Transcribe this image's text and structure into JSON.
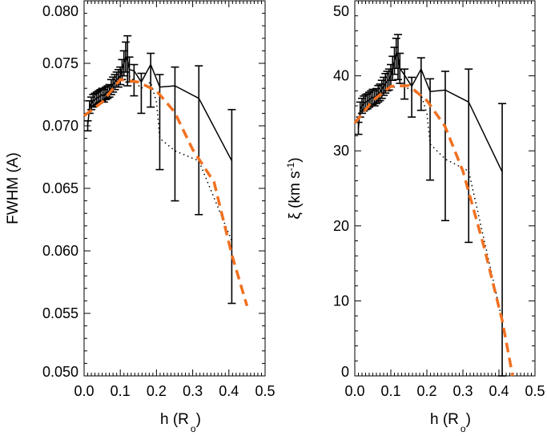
{
  "chart_data": [
    {
      "type": "line",
      "panel": "left",
      "xlabel": "h (R",
      "xlabel_sub": "o",
      "xlabel_close": ")",
      "ylabel": "FWHM (A)",
      "xlim": [
        0.0,
        0.5
      ],
      "ylim": [
        0.05,
        0.08
      ],
      "xticks": [
        "0.0",
        "0.1",
        "0.2",
        "0.3",
        "0.4",
        "0.5"
      ],
      "yticks": [
        "0.050",
        "0.055",
        "0.060",
        "0.065",
        "0.070",
        "0.075",
        "0.080"
      ],
      "cluster": {
        "x": [
          0.01,
          0.015,
          0.02,
          0.025,
          0.03,
          0.035,
          0.04,
          0.045,
          0.05,
          0.055,
          0.06,
          0.065,
          0.07,
          0.075,
          0.08,
          0.085,
          0.09,
          0.095,
          0.1,
          0.105,
          0.11,
          0.115,
          0.12,
          0.125
        ],
        "y": [
          0.07,
          0.0715,
          0.0718,
          0.072,
          0.0721,
          0.0722,
          0.0723,
          0.0724,
          0.0725,
          0.0724,
          0.0726,
          0.0727,
          0.0728,
          0.0731,
          0.0733,
          0.0735,
          0.0737,
          0.0738,
          0.074,
          0.0745,
          0.075,
          0.0755,
          0.0752,
          0.0745
        ],
        "err": [
          0.0004,
          0.0005,
          0.0005,
          0.0005,
          0.0005,
          0.0005,
          0.0005,
          0.0005,
          0.0005,
          0.0005,
          0.0005,
          0.0005,
          0.0005,
          0.0006,
          0.0006,
          0.0006,
          0.0006,
          0.0007,
          0.0007,
          0.0008,
          0.001,
          0.0012,
          0.002,
          0.001
        ]
      },
      "solid": {
        "x": [
          0.138,
          0.158,
          0.184,
          0.209,
          0.251,
          0.317,
          0.408
        ],
        "y": [
          0.0744,
          0.0735,
          0.0749,
          0.0731,
          0.0732,
          0.0722,
          0.0672
        ],
        "err_low": [
          0.0724,
          0.071,
          0.0715,
          0.0665,
          0.064,
          0.0629,
          0.0558
        ],
        "err_high": [
          0.0749,
          0.0742,
          0.0758,
          0.0741,
          0.0747,
          0.0748,
          0.0713
        ]
      },
      "dotted": {
        "x": [
          0.125,
          0.158,
          0.184,
          0.2,
          0.209,
          0.251,
          0.317,
          0.408
        ],
        "y": [
          0.074,
          0.073,
          0.0735,
          0.0719,
          0.069,
          0.068,
          0.0672,
          0.0608
        ]
      },
      "fit": {
        "x": [
          0.0,
          0.05,
          0.1,
          0.15,
          0.2,
          0.25,
          0.3,
          0.359,
          0.408,
          0.45
        ],
        "y": [
          0.0708,
          0.0719,
          0.0737,
          0.0735,
          0.0728,
          0.0711,
          0.0681,
          0.0655,
          0.0597,
          0.0556
        ]
      }
    },
    {
      "type": "line",
      "panel": "right",
      "xlabel": "h (R",
      "xlabel_sub": "o",
      "xlabel_close": ")",
      "ylabel": "ξ (km s",
      "ylabel_sup": "-1",
      "ylabel_close": ")",
      "xlim": [
        0.0,
        0.5
      ],
      "ylim": [
        0,
        50
      ],
      "xticks": [
        "0.0",
        "0.1",
        "0.2",
        "0.3",
        "0.4",
        "0.5"
      ],
      "yticks": [
        "0",
        "10",
        "20",
        "30",
        "40",
        "50"
      ],
      "cluster": {
        "x": [
          0.01,
          0.015,
          0.02,
          0.025,
          0.03,
          0.035,
          0.04,
          0.045,
          0.05,
          0.055,
          0.06,
          0.065,
          0.07,
          0.075,
          0.08,
          0.085,
          0.09,
          0.095,
          0.1,
          0.105,
          0.11,
          0.115,
          0.12,
          0.125
        ],
        "y": [
          33.0,
          35.5,
          36.0,
          36.3,
          36.5,
          36.6,
          36.8,
          37.0,
          37.2,
          37.0,
          37.3,
          37.6,
          37.8,
          38.2,
          38.6,
          39.0,
          39.3,
          39.5,
          40.0,
          41.0,
          42.0,
          43.0,
          42.5,
          41.0
        ],
        "err": [
          0.8,
          1.0,
          1.0,
          1.0,
          1.0,
          1.0,
          1.0,
          1.0,
          1.0,
          1.0,
          1.0,
          1.1,
          1.1,
          1.2,
          1.2,
          1.3,
          1.3,
          1.4,
          1.5,
          1.6,
          1.8,
          2.0,
          3.0,
          2.0
        ]
      },
      "solid": {
        "x": [
          0.138,
          0.158,
          0.184,
          0.209,
          0.251,
          0.316,
          0.409
        ],
        "y": [
          40.1,
          38.6,
          40.9,
          37.9,
          38.1,
          36.5,
          27.2
        ],
        "err_low": [
          36.9,
          34.5,
          35.4,
          26.1,
          20.7,
          17.8,
          0
        ],
        "err_high": [
          40.9,
          39.8,
          42.4,
          39.6,
          40.6,
          40.9,
          36.3
        ]
      },
      "dotted": {
        "x": [
          0.125,
          0.158,
          0.184,
          0.2,
          0.209,
          0.251,
          0.316,
          0.409
        ],
        "y": [
          39.0,
          38.0,
          37.5,
          35.0,
          30.9,
          28.9,
          27.3,
          7.4
        ]
      },
      "fit": {
        "x": [
          0.0,
          0.05,
          0.1,
          0.15,
          0.2,
          0.25,
          0.3,
          0.358,
          0.409,
          0.438
        ],
        "y": [
          33.7,
          36.7,
          38.6,
          38.7,
          36.7,
          33.3,
          27.3,
          17.3,
          7.4,
          0
        ]
      }
    }
  ],
  "colors": {
    "fit": "#f07020",
    "line": "#000000"
  }
}
